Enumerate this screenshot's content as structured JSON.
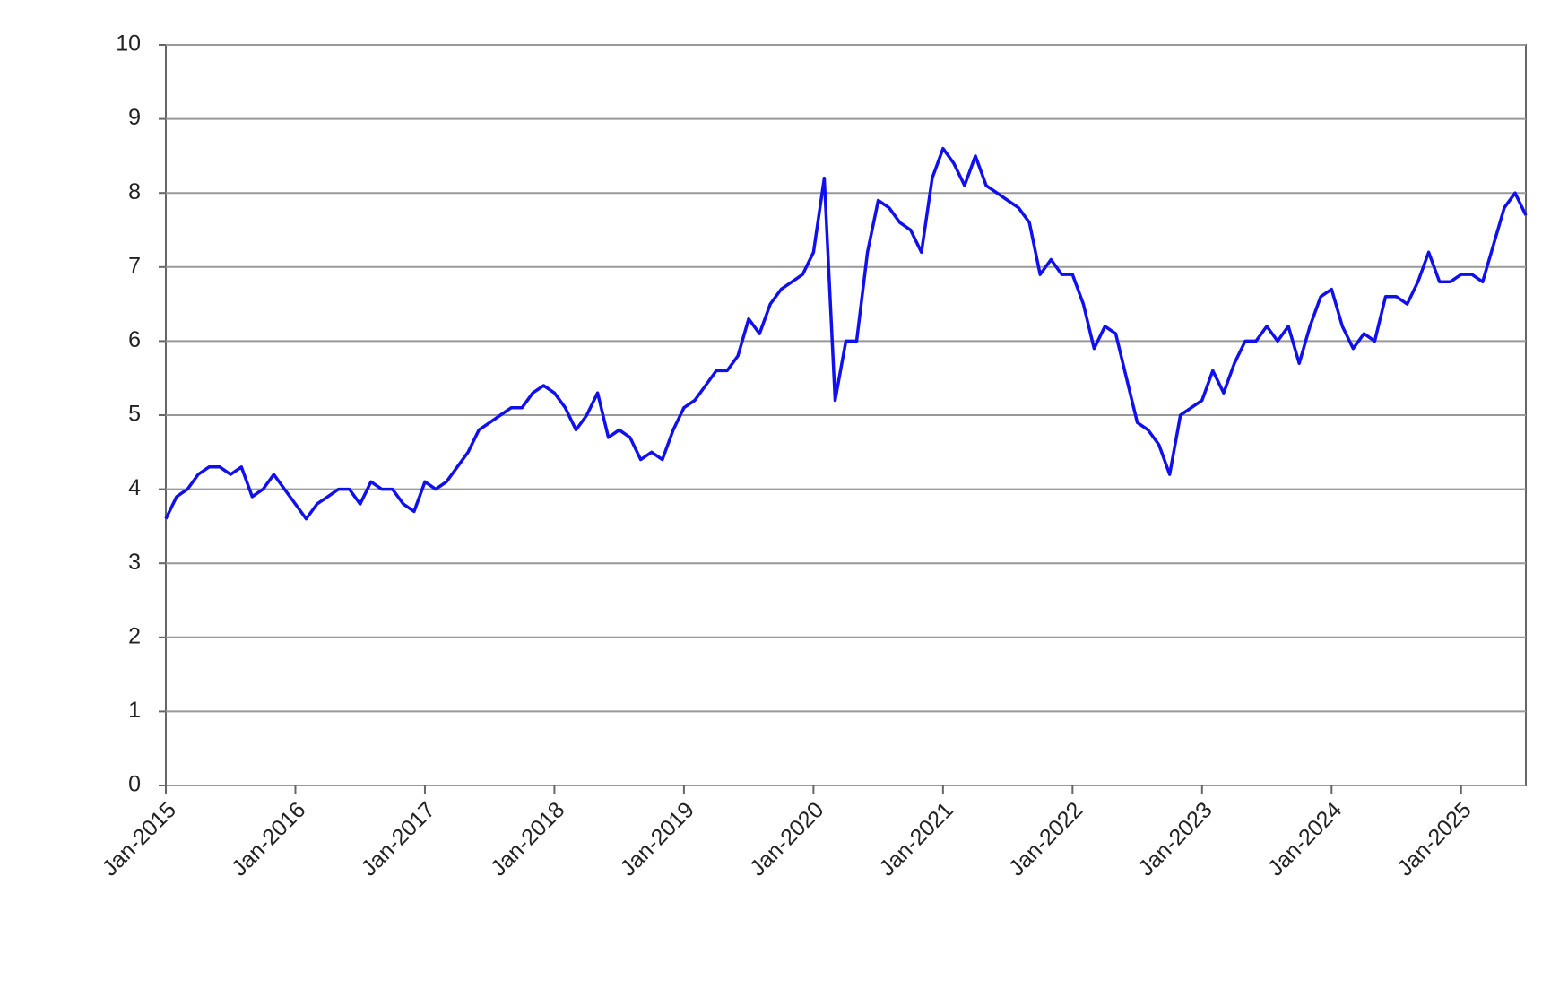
{
  "chart_data": {
    "type": "line",
    "x": [
      "2015-01",
      "2015-02",
      "2015-03",
      "2015-04",
      "2015-05",
      "2015-06",
      "2015-07",
      "2015-08",
      "2015-09",
      "2015-10",
      "2015-11",
      "2015-12",
      "2016-01",
      "2016-02",
      "2016-03",
      "2016-04",
      "2016-05",
      "2016-06",
      "2016-07",
      "2016-08",
      "2016-09",
      "2016-10",
      "2016-11",
      "2016-12",
      "2017-01",
      "2017-02",
      "2017-03",
      "2017-04",
      "2017-05",
      "2017-06",
      "2017-07",
      "2017-08",
      "2017-09",
      "2017-10",
      "2017-11",
      "2017-12",
      "2018-01",
      "2018-02",
      "2018-03",
      "2018-04",
      "2018-05",
      "2018-06",
      "2018-07",
      "2018-08",
      "2018-09",
      "2018-10",
      "2018-11",
      "2018-12",
      "2019-01",
      "2019-02",
      "2019-03",
      "2019-04",
      "2019-05",
      "2019-06",
      "2019-07",
      "2019-08",
      "2019-09",
      "2019-10",
      "2019-11",
      "2019-12",
      "2020-01",
      "2020-02",
      "2020-03",
      "2020-04",
      "2020-05",
      "2020-06",
      "2020-07",
      "2020-08",
      "2020-09",
      "2020-10",
      "2020-11",
      "2020-12",
      "2021-01",
      "2021-02",
      "2021-03",
      "2021-04",
      "2021-05",
      "2021-06",
      "2021-07",
      "2021-08",
      "2021-09",
      "2021-10",
      "2021-11",
      "2021-12",
      "2022-01",
      "2022-02",
      "2022-03",
      "2022-04",
      "2022-05",
      "2022-06",
      "2022-07",
      "2022-08",
      "2022-09",
      "2022-10",
      "2022-11",
      "2022-12",
      "2023-01",
      "2023-02",
      "2023-03",
      "2023-04",
      "2023-05",
      "2023-06",
      "2023-07",
      "2023-08",
      "2023-09",
      "2023-10",
      "2023-11",
      "2023-12",
      "2024-01",
      "2024-02",
      "2024-03",
      "2024-04",
      "2024-05",
      "2024-06",
      "2024-07",
      "2024-08",
      "2024-09",
      "2024-10",
      "2024-11",
      "2024-12",
      "2025-01",
      "2025-02",
      "2025-03",
      "2025-04",
      "2025-05",
      "2025-06",
      "2025-07"
    ],
    "series": [
      {
        "color": "#1010ee",
        "values": [
          3.6,
          3.9,
          4.0,
          4.2,
          4.3,
          4.3,
          4.2,
          4.3,
          3.9,
          4.0,
          4.2,
          4.0,
          3.8,
          3.6,
          3.8,
          3.9,
          4.0,
          4.0,
          3.8,
          4.1,
          4.0,
          4.0,
          3.8,
          3.7,
          4.1,
          4.0,
          4.1,
          4.3,
          4.5,
          4.8,
          4.9,
          5.0,
          5.1,
          5.1,
          5.3,
          5.4,
          5.3,
          5.1,
          4.8,
          5.0,
          5.3,
          4.7,
          4.8,
          4.7,
          4.4,
          4.5,
          4.4,
          4.8,
          5.1,
          5.2,
          5.4,
          5.6,
          5.6,
          5.8,
          6.3,
          6.1,
          6.5,
          6.7,
          6.8,
          6.9,
          7.2,
          8.2,
          5.2,
          6.0,
          6.0,
          7.2,
          7.9,
          7.8,
          7.6,
          7.5,
          7.2,
          8.2,
          8.6,
          8.4,
          8.1,
          8.5,
          8.1,
          8.0,
          7.9,
          7.8,
          7.6,
          6.9,
          7.1,
          6.9,
          6.9,
          6.5,
          5.9,
          6.2,
          6.1,
          5.5,
          4.9,
          4.8,
          4.6,
          4.2,
          5.0,
          5.1,
          5.2,
          5.6,
          5.3,
          5.7,
          6.0,
          6.0,
          6.2,
          6.0,
          6.2,
          5.7,
          6.2,
          6.6,
          6.7,
          6.2,
          5.9,
          6.1,
          6.0,
          6.6,
          6.6,
          6.5,
          6.8,
          7.2,
          6.8,
          6.8,
          6.9,
          6.9,
          6.8,
          7.3,
          7.8,
          8.0,
          7.7
        ]
      }
    ],
    "xlim": [
      "2015-01",
      "2025-07"
    ],
    "xticks": [
      {
        "value": "2015-01",
        "label": "Jan-2015"
      },
      {
        "value": "2016-01",
        "label": "Jan-2016"
      },
      {
        "value": "2017-01",
        "label": "Jan-2017"
      },
      {
        "value": "2018-01",
        "label": "Jan-2018"
      },
      {
        "value": "2019-01",
        "label": "Jan-2019"
      },
      {
        "value": "2020-01",
        "label": "Jan-2020"
      },
      {
        "value": "2021-01",
        "label": "Jan-2021"
      },
      {
        "value": "2022-01",
        "label": "Jan-2022"
      },
      {
        "value": "2023-01",
        "label": "Jan-2023"
      },
      {
        "value": "2024-01",
        "label": "Jan-2024"
      },
      {
        "value": "2025-01",
        "label": "Jan-2025"
      }
    ],
    "ylim": [
      0,
      10
    ],
    "yticks": [
      0,
      1,
      2,
      3,
      4,
      5,
      6,
      7,
      8,
      9,
      10
    ],
    "grid": true
  }
}
